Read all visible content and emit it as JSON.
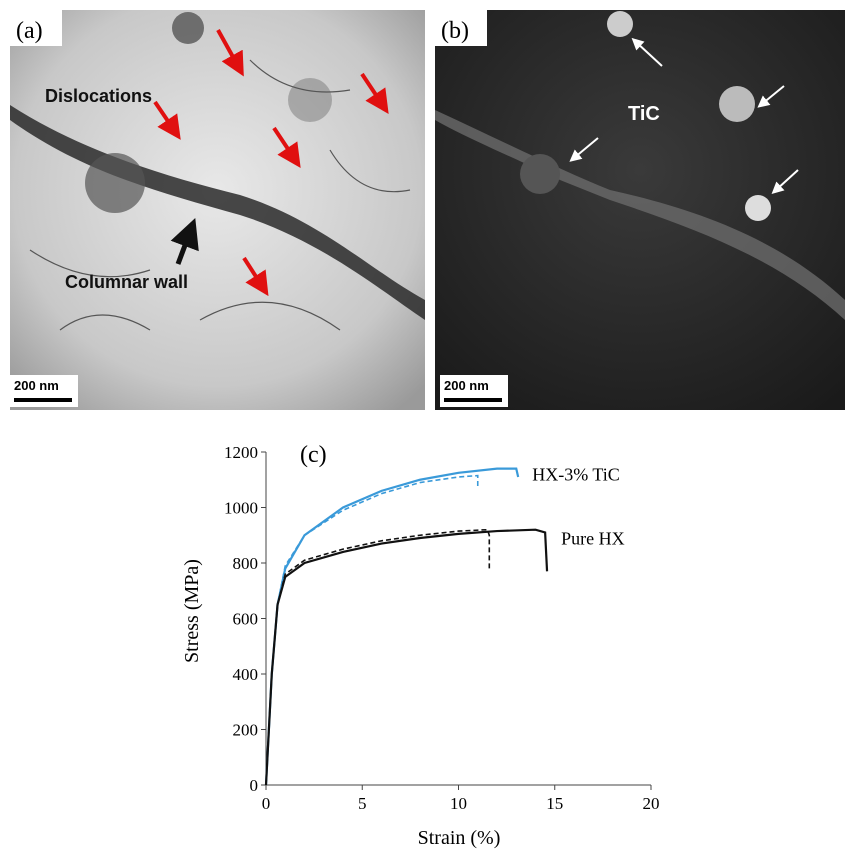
{
  "panels": [
    {
      "label": "(a)",
      "annotations": [
        "Dislocations",
        "Columnar wall"
      ],
      "scale_bar": "200 nm"
    },
    {
      "label": "(b)",
      "annotations": [
        "TiC"
      ],
      "scale_bar": "200 nm"
    }
  ],
  "chart_data": {
    "type": "line",
    "label": "(c)",
    "x_label": "Strain (%)",
    "y_label": "Stress (MPa)",
    "xlim": [
      0,
      20
    ],
    "ylim": [
      0,
      1200
    ],
    "xticks": [
      0,
      5,
      10,
      15,
      20
    ],
    "yticks": [
      0,
      200,
      400,
      600,
      800,
      1000,
      1200
    ],
    "series": [
      {
        "name": "HX-3% TiC",
        "color": "#3a9ad9",
        "dashed": false,
        "x": [
          0,
          0.3,
          0.6,
          1,
          2,
          4,
          6,
          8,
          10,
          12,
          13,
          13.1
        ],
        "values": [
          0,
          400,
          650,
          780,
          900,
          1000,
          1060,
          1100,
          1125,
          1140,
          1140,
          1110
        ]
      },
      {
        "color": "#3a9ad9",
        "dashed": true,
        "x": [
          0,
          0.3,
          0.6,
          1,
          2,
          4,
          6,
          8,
          10,
          11,
          11
        ],
        "values": [
          0,
          400,
          650,
          790,
          900,
          990,
          1050,
          1090,
          1110,
          1115,
          1070
        ]
      },
      {
        "name": "Pure HX",
        "color": "#111111",
        "dashed": false,
        "x": [
          0,
          0.3,
          0.6,
          1,
          2,
          4,
          6,
          8,
          10,
          12,
          14,
          14.5,
          14.6
        ],
        "values": [
          0,
          400,
          650,
          750,
          800,
          840,
          870,
          890,
          905,
          915,
          920,
          910,
          770
        ]
      },
      {
        "color": "#111111",
        "dashed": true,
        "x": [
          0,
          0.3,
          0.6,
          1,
          2,
          4,
          6,
          8,
          10,
          11.5,
          11.6,
          11.6
        ],
        "values": [
          0,
          400,
          650,
          760,
          810,
          850,
          880,
          900,
          915,
          920,
          900,
          770
        ]
      }
    ]
  }
}
